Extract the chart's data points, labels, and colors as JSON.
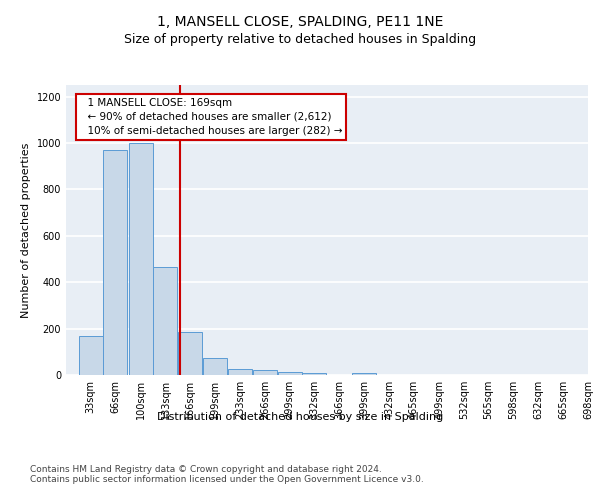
{
  "title": "1, MANSELL CLOSE, SPALDING, PE11 1NE",
  "subtitle": "Size of property relative to detached houses in Spalding",
  "xlabel": "Distribution of detached houses by size in Spalding",
  "ylabel": "Number of detached properties",
  "bin_edges": [
    33,
    66,
    100,
    133,
    166,
    199,
    233,
    266,
    299,
    332,
    366,
    399,
    432,
    465,
    499,
    532,
    565,
    598,
    632,
    665,
    698
  ],
  "bar_heights": [
    170,
    970,
    1000,
    465,
    185,
    75,
    25,
    20,
    15,
    10,
    0,
    10,
    0,
    0,
    0,
    0,
    0,
    0,
    0,
    0
  ],
  "bar_color": "#c8d8e8",
  "bar_edge_color": "#5b9bd5",
  "property_size": 169,
  "vline_color": "#cc0000",
  "annotation_text": "  1 MANSELL CLOSE: 169sqm\n  ← 90% of detached houses are smaller (2,612)\n  10% of semi-detached houses are larger (282) →",
  "annotation_box_color": "#ffffff",
  "annotation_box_edge_color": "#cc0000",
  "ylim": [
    0,
    1250
  ],
  "yticks": [
    0,
    200,
    400,
    600,
    800,
    1000,
    1200
  ],
  "bg_color": "#e8eef5",
  "footer_text": "Contains HM Land Registry data © Crown copyright and database right 2024.\nContains public sector information licensed under the Open Government Licence v3.0.",
  "title_fontsize": 10,
  "subtitle_fontsize": 9,
  "axis_label_fontsize": 8,
  "tick_fontsize": 7,
  "annotation_fontsize": 7.5,
  "footer_fontsize": 6.5
}
